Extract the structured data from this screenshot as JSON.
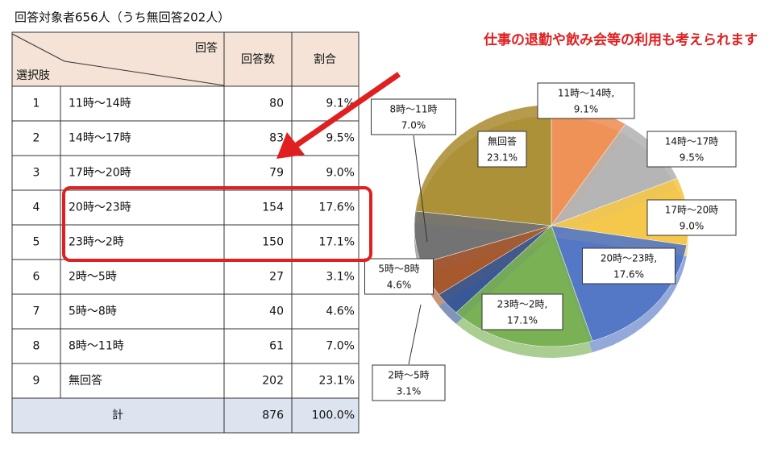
{
  "title": "回答対象者656人（うち無回答202人）",
  "annotation": "仕事の退勤や飲み会等の利用も考えられます",
  "table": {
    "header": {
      "corner_top": "回答",
      "corner_bottom": "選択肢",
      "count": "回答数",
      "ratio": "割合"
    },
    "rows": [
      [
        "1",
        "11時～14時",
        "80",
        "9.1%"
      ],
      [
        "2",
        "14時～17時",
        "83",
        "9.5%"
      ],
      [
        "3",
        "17時～20時",
        "79",
        "9.0%"
      ],
      [
        "4",
        "20時～23時",
        "154",
        "17.6%"
      ],
      [
        "5",
        "23時～2時",
        "150",
        "17.1%"
      ],
      [
        "6",
        "2時～5時",
        "27",
        "3.1%"
      ],
      [
        "7",
        "5時～8時",
        "40",
        "4.6%"
      ],
      [
        "8",
        "8時～11時",
        "61",
        "7.0%"
      ],
      [
        "9",
        "無回答",
        "202",
        "23.1%"
      ]
    ],
    "total": [
      "計",
      "876",
      "100.0%"
    ]
  },
  "chart_data": {
    "type": "pie",
    "categories": [
      "11時～14時,",
      "14時～17時",
      "17時～20時",
      "20時～23時,",
      "23時～2時,",
      "2時～5時",
      "5時～8時",
      "8時～11時",
      "無回答"
    ],
    "values": [
      9.1,
      9.5,
      9.0,
      17.6,
      17.1,
      3.1,
      4.6,
      7.0,
      23.1
    ],
    "value_labels": [
      "9.1%",
      "9.5%",
      "9.0%",
      "17.6%",
      "17.1%",
      "3.1%",
      "4.6%",
      "7.0%",
      "23.1%"
    ],
    "colors": [
      "#ed8b4e",
      "#b0b0b0",
      "#f4c33e",
      "#4a70c2",
      "#72ab4a",
      "#2c4f8f",
      "#a14e20",
      "#6a6a6a",
      "#a88a2c"
    ]
  }
}
